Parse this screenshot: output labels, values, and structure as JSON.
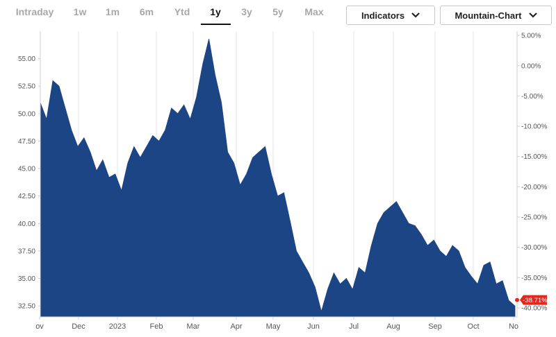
{
  "toolbar": {
    "ranges": [
      "Intraday",
      "1w",
      "1m",
      "6m",
      "Ytd",
      "1y",
      "3y",
      "5y",
      "Max"
    ],
    "active_range": "1y",
    "indicators_label": "Indicators",
    "chart_type_label": "Mountain-Chart"
  },
  "colors": {
    "fill": "#1c4586",
    "badge": "#e0281f",
    "grid": "#e6e6e6",
    "axis": "#cfcfcf"
  },
  "chart_data": {
    "type": "area",
    "title": "",
    "xlabel": "",
    "ylabel": "",
    "ylim": [
      31.5,
      57.5
    ],
    "y2lim": [
      -41.5,
      5.7
    ],
    "y_ticks": [
      "32.50",
      "35.00",
      "37.50",
      "40.00",
      "42.50",
      "45.00",
      "47.50",
      "50.00",
      "52.50",
      "55.00"
    ],
    "y2_ticks": [
      "-40.00%",
      "-35.00%",
      "-30.00%",
      "-25.00%",
      "-20.00%",
      "-15.00%",
      "-10.00%",
      "-5.00%",
      "0.00%",
      "5.00%"
    ],
    "x_months": [
      "ov",
      "Dec",
      "2023",
      "Feb",
      "Mar",
      "Apr",
      "May",
      "Jun",
      "Jul",
      "Aug",
      "Sep",
      "Oct",
      "No"
    ],
    "last_change": "-38.71%",
    "x": [
      "Nov 4",
      "Nov 8",
      "Nov 12",
      "Nov 16",
      "Nov 20",
      "Nov 25",
      "Nov 30",
      "Dec 5",
      "Dec 10",
      "Dec 15",
      "Dec 20",
      "Dec 25",
      "Dec 30",
      "Jan 4",
      "Jan 8",
      "Jan 12",
      "Jan 17",
      "Jan 22",
      "Jan 27",
      "Feb 1",
      "Feb 6",
      "Feb 11",
      "Feb 15",
      "Feb 20",
      "Feb 25",
      "Mar 1",
      "Mar 4",
      "Mar 8",
      "Mar 12",
      "Mar 16",
      "Mar 21",
      "Mar 26",
      "Mar 31",
      "Apr 5",
      "Apr 10",
      "Apr 15",
      "Apr 20",
      "Apr 25",
      "Apr 30",
      "May 5",
      "May 10",
      "May 15",
      "May 20",
      "May 25",
      "May 30",
      "Jun 2",
      "Jun 6",
      "Jun 10",
      "Jun 15",
      "Jun 20",
      "Jun 25",
      "Jun 30",
      "Jul 5",
      "Jul 10",
      "Jul 15",
      "Jul 20",
      "Jul 25",
      "Jul 30",
      "Aug 4",
      "Aug 9",
      "Aug 14",
      "Aug 19",
      "Aug 24",
      "Aug 29",
      "Sep 3",
      "Sep 8",
      "Sep 13",
      "Sep 18",
      "Sep 23",
      "Sep 28",
      "Oct 3",
      "Oct 8",
      "Oct 13",
      "Oct 18",
      "Oct 23",
      "Oct 28",
      "Nov 1"
    ],
    "values": [
      51.0,
      49.5,
      53.0,
      52.5,
      50.5,
      48.5,
      47.0,
      47.8,
      46.5,
      44.8,
      45.8,
      44.2,
      44.5,
      43.0,
      45.5,
      47.0,
      46.0,
      47.0,
      48.0,
      47.5,
      48.5,
      50.5,
      50.0,
      50.8,
      49.5,
      51.5,
      54.5,
      56.8,
      53.5,
      51.0,
      46.5,
      45.5,
      43.5,
      44.5,
      46.0,
      46.5,
      47.0,
      44.5,
      42.5,
      42.8,
      40.2,
      37.5,
      36.5,
      35.5,
      34.2,
      32.0,
      34.0,
      35.5,
      34.5,
      35.0,
      34.0,
      36.0,
      35.5,
      38.0,
      40.0,
      41.0,
      41.5,
      42.0,
      41.0,
      40.0,
      39.8,
      39.0,
      38.0,
      38.5,
      37.5,
      37.0,
      38.0,
      37.5,
      36.0,
      35.2,
      34.5,
      36.2,
      36.5,
      34.5,
      34.8,
      33.0,
      32.5
    ]
  }
}
